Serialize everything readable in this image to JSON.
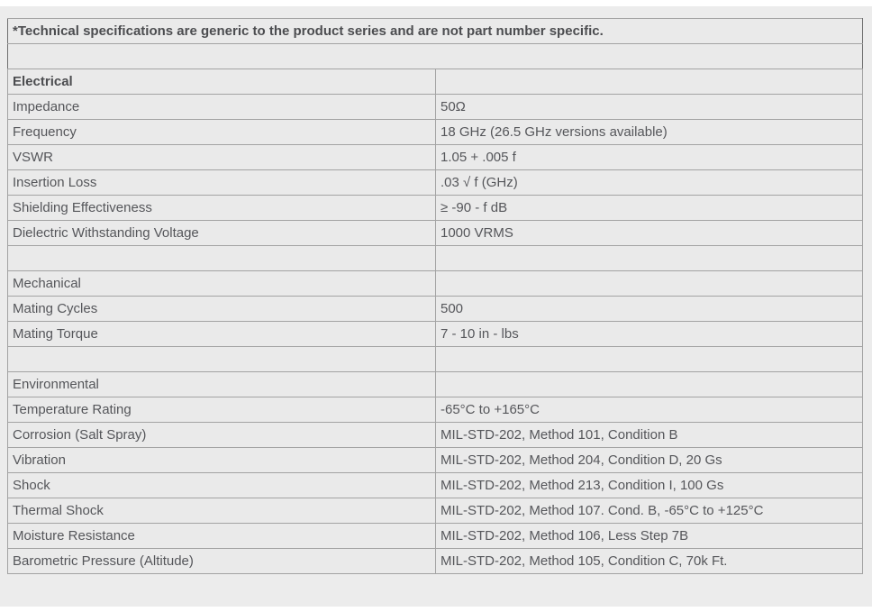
{
  "page": {
    "background_color": "#ececec",
    "top_strip_color": "#ffffff",
    "bottom_strip_color": "#ffffff",
    "cell_background_color": "#eaeaea",
    "inner_border_color": "#a3a3a3",
    "outer_border_color": "#6f6f6f",
    "text_color": "#55565a",
    "bold_text_color": "#4c4d50"
  },
  "spec_table": {
    "rows": [
      {
        "type": "note",
        "label": "*Technical specifications are generic to the product series and are not part number specific.",
        "bold": true
      },
      {
        "type": "spacer_full",
        "label": ""
      },
      {
        "type": "section",
        "label": "Electrical",
        "bold": true
      },
      {
        "type": "kv",
        "label": "Impedance",
        "value": "50Ω"
      },
      {
        "type": "kv",
        "label": "Frequency",
        "value": "18 GHz (26.5 GHz versions available)"
      },
      {
        "type": "kv",
        "label": "VSWR",
        "value": "1.05 + .005 f"
      },
      {
        "type": "kv",
        "label": "Insertion Loss",
        "value": ".03 √ f (GHz)"
      },
      {
        "type": "kv",
        "label": "Shielding Effectiveness",
        "value": "≥ -90 - f dB"
      },
      {
        "type": "kv",
        "label": "Dielectric Withstanding Voltage",
        "value": "1000 VRMS"
      },
      {
        "type": "spacer",
        "label": ""
      },
      {
        "type": "section",
        "label": "Mechanical",
        "bold": false
      },
      {
        "type": "kv",
        "label": "Mating Cycles",
        "value": "500"
      },
      {
        "type": "kv",
        "label": "Mating Torque",
        "value": "7 - 10 in - lbs"
      },
      {
        "type": "spacer",
        "label": ""
      },
      {
        "type": "section",
        "label": "Environmental",
        "bold": false
      },
      {
        "type": "kv",
        "label": "Temperature Rating",
        "value": "-65°C to +165°C"
      },
      {
        "type": "kv",
        "label": "Corrosion (Salt Spray)",
        "value": "MIL-STD-202, Method 101, Condition B"
      },
      {
        "type": "kv",
        "label": "Vibration",
        "value": "MIL-STD-202, Method 204, Condition D, 20 Gs"
      },
      {
        "type": "kv",
        "label": "Shock",
        "value": "MIL-STD-202, Method 213, Condition I, 100 Gs"
      },
      {
        "type": "kv",
        "label": "Thermal Shock",
        "value": "MIL-STD-202, Method 107. Cond. B, -65°C to +125°C"
      },
      {
        "type": "kv",
        "label": "Moisture Resistance",
        "value": "MIL-STD-202, Method 106, Less Step 7B"
      },
      {
        "type": "kv",
        "label": "Barometric Pressure (Altitude)",
        "value": "MIL-STD-202, Method 105, Condition C, 70k Ft."
      }
    ]
  }
}
